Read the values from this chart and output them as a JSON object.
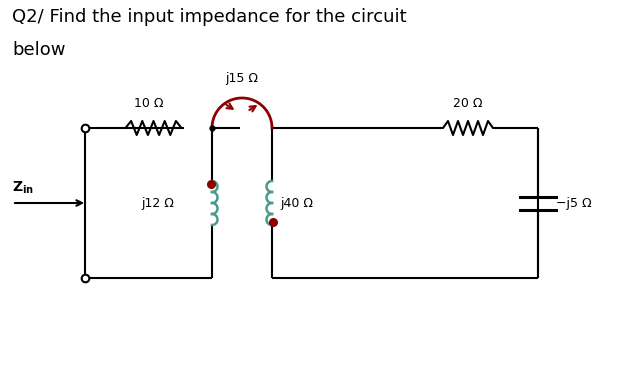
{
  "title_line1": "Q2/ Find the input impedance for the circuit",
  "title_line2": "below",
  "title_fontsize": 13,
  "background_color": "#ffffff",
  "line_color": "#000000",
  "inductor_color": "#8B0000",
  "coil_color": "#4a9a8a",
  "dot_color": "#8B0000",
  "resistor_color": "#000000",
  "arrow_color": "#8B0000",
  "labels": {
    "R1": "10 Ω",
    "R2": "20 Ω",
    "L1": "j12 Ω",
    "L2": "j15 Ω",
    "L3": "j40 Ω",
    "C1": "−j5 Ω",
    "Zin": "Z"
  },
  "fig_width": 6.23,
  "fig_height": 3.83,
  "dpi": 100
}
